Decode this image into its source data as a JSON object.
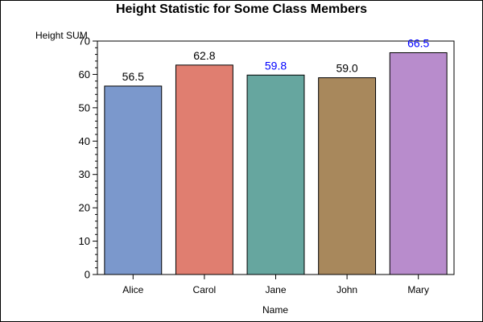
{
  "chart_data": {
    "type": "bar",
    "title": "Height Statistic for Some Class Members",
    "xlabel": "Name",
    "ylabel": "Height SUM",
    "categories": [
      "Alice",
      "Carol",
      "Jane",
      "John",
      "Mary"
    ],
    "values": [
      56.5,
      62.8,
      59.8,
      59.0,
      66.5
    ],
    "value_labels": [
      "56.5",
      "62.8",
      "59.8",
      "59.0",
      "66.5"
    ],
    "bar_colors": [
      "#7b98cc",
      "#e07e70",
      "#66a69f",
      "#a8885c",
      "#b88ccc"
    ],
    "label_colors": [
      "#000000",
      "#000000",
      "#0000ff",
      "#000000",
      "#0000ff"
    ],
    "ylim": [
      0,
      70
    ],
    "yticks": [
      0,
      10,
      20,
      30,
      40,
      50,
      60,
      70
    ],
    "grid": false,
    "legend": "none"
  }
}
